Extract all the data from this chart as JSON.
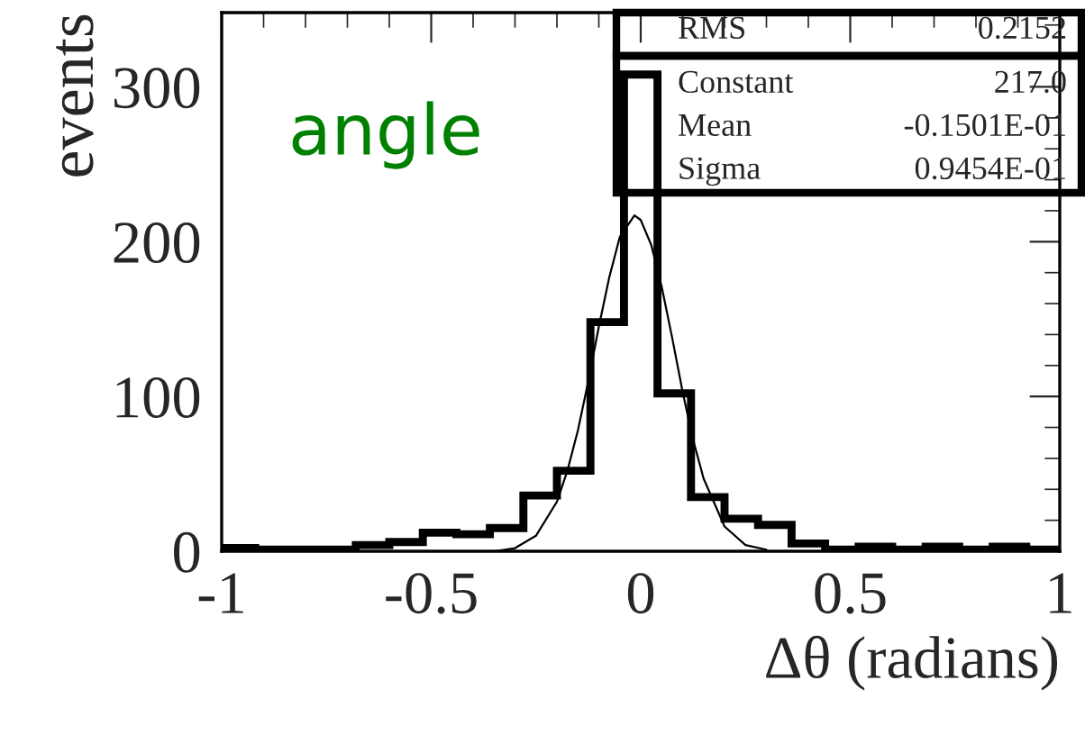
{
  "chart_data": {
    "type": "histogram",
    "xlabel": "Δθ (radians)",
    "ylabel": "events",
    "bins": [
      -1,
      -0.92,
      -0.84,
      -0.76,
      -0.68,
      -0.6,
      -0.52,
      -0.44,
      -0.36,
      -0.28,
      -0.2,
      -0.12,
      -0.04,
      0.04,
      0.12,
      0.2,
      0.28,
      0.36,
      0.44,
      0.52,
      0.6,
      0.68,
      0.76,
      0.84,
      0.92,
      1
    ],
    "values": [
      2,
      1,
      1,
      1,
      4,
      6,
      12,
      11,
      15,
      36,
      52,
      148,
      308,
      102,
      35,
      21,
      17,
      5,
      1,
      3,
      1,
      3,
      1,
      3,
      1
    ],
    "color": "#000000",
    "series": [
      {
        "type": "line",
        "color": "#000000",
        "x": [
          -0.35,
          -0.3,
          -0.25,
          -0.2,
          -0.175,
          -0.15,
          -0.125,
          -0.1,
          -0.075,
          -0.05,
          -0.015,
          0,
          0.025,
          0.05,
          0.075,
          0.1,
          0.125,
          0.15,
          0.2,
          0.25,
          0.3
        ],
        "values": [
          0,
          2,
          10,
          32,
          52,
          78,
          110,
          145,
          177,
          203,
          217,
          214,
          198,
          171,
          138,
          103,
          72,
          47,
          16,
          4,
          1
        ]
      }
    ],
    "xlim": [
      -1,
      1
    ],
    "ylim": [
      0,
      348
    ],
    "xticks": [
      {
        "value": -1,
        "label": "-1"
      },
      {
        "value": -0.5,
        "label": "-0.5"
      },
      0,
      0.5,
      1
    ],
    "yticks": [
      0,
      100,
      200,
      300
    ],
    "annotations": [
      "angle",
      "RMS",
      "0.2152",
      "Constant",
      "217.0",
      "Mean",
      "-0.1501E-01",
      "Sigma",
      "0.9454E-01"
    ],
    "grid": false,
    "legend": false
  }
}
